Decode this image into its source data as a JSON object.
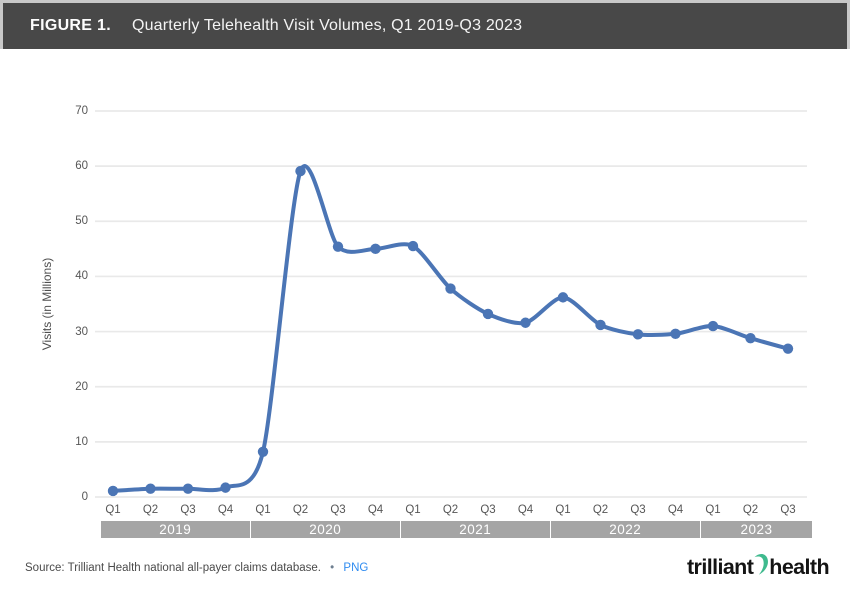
{
  "figure": {
    "label": "FIGURE 1.",
    "title": "Quarterly Telehealth Visit Volumes, Q1 2019-Q3 2023"
  },
  "chart_data": {
    "type": "line",
    "title": "Quarterly Telehealth Visit Volumes, Q1 2019-Q3 2023",
    "ylabel": "Visits (in Millions)",
    "ylim": [
      0,
      70
    ],
    "yticks": [
      0,
      10,
      20,
      30,
      40,
      50,
      60,
      70
    ],
    "grid": true,
    "legend_position": "none",
    "line_color": "#4b75b5",
    "marker": "circle",
    "categories": [
      "2019 Q1",
      "2019 Q2",
      "2019 Q3",
      "2019 Q4",
      "2020 Q1",
      "2020 Q2",
      "2020 Q3",
      "2020 Q4",
      "2021 Q1",
      "2021 Q2",
      "2021 Q3",
      "2021 Q4",
      "2022 Q1",
      "2022 Q2",
      "2022 Q3",
      "2022 Q4",
      "2023 Q1",
      "2023 Q2",
      "2023 Q3"
    ],
    "quarter_labels": [
      "Q1",
      "Q2",
      "Q3",
      "Q4",
      "Q1",
      "Q2",
      "Q3",
      "Q4",
      "Q1",
      "Q2",
      "Q3",
      "Q4",
      "Q1",
      "Q2",
      "Q3",
      "Q4",
      "Q1",
      "Q2",
      "Q3"
    ],
    "year_groups": [
      {
        "label": "2019",
        "count": 4
      },
      {
        "label": "2020",
        "count": 4
      },
      {
        "label": "2021",
        "count": 4
      },
      {
        "label": "2022",
        "count": 4
      },
      {
        "label": "2023",
        "count": 3
      }
    ],
    "values": [
      1.1,
      1.5,
      1.5,
      1.7,
      8.2,
      59.1,
      45.4,
      45.0,
      45.5,
      37.8,
      33.2,
      31.6,
      36.2,
      31.2,
      29.5,
      29.6,
      31.0,
      28.8,
      26.9
    ]
  },
  "footer": {
    "source_text": "Source: Trilliant Health national all-payer claims database.",
    "separator": "•",
    "link_label": "PNG"
  },
  "logo": {
    "word1": "trilliant",
    "word2": "health",
    "swoosh_color": "#3fba8e"
  },
  "colors": {
    "header_bg": "#484848",
    "header_text": "#f4f4f4",
    "gridline": "#e9e9e9",
    "axis_text": "#565656",
    "year_band_bg": "#a5a5a5",
    "line": "#4b75b5",
    "link": "#2e8bf0"
  }
}
